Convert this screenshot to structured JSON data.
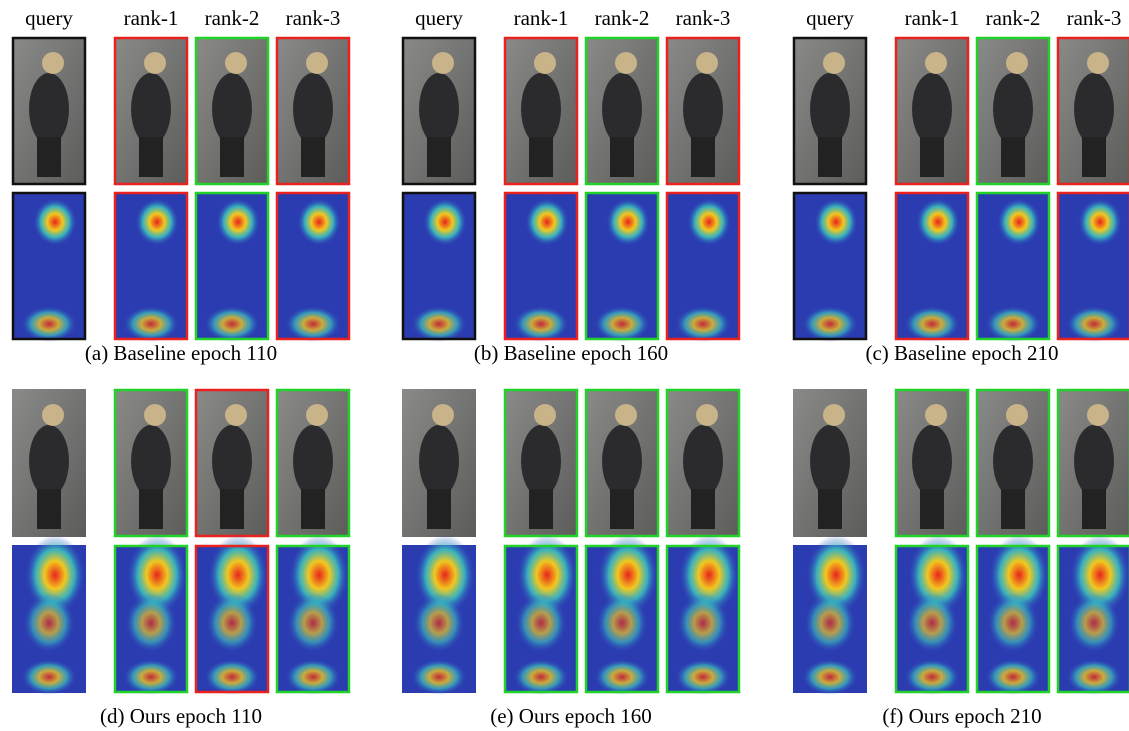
{
  "panels": [
    {
      "headers": [
        "query",
        "rank-1",
        "rank-2",
        "rank-3"
      ],
      "caption": "(a) Baseline epoch 110"
    },
    {
      "headers": [
        "query",
        "rank-1",
        "rank-2",
        "rank-3"
      ],
      "caption": "(b) Baseline epoch 160"
    },
    {
      "headers": [
        "query",
        "rank-1",
        "rank-2",
        "rank-3"
      ],
      "caption": "(c) Baseline epoch 210"
    },
    {
      "caption": "(d) Ours epoch 110"
    },
    {
      "caption": "(e) Ours epoch 160"
    },
    {
      "caption": "(f) Ours epoch 210"
    }
  ]
}
